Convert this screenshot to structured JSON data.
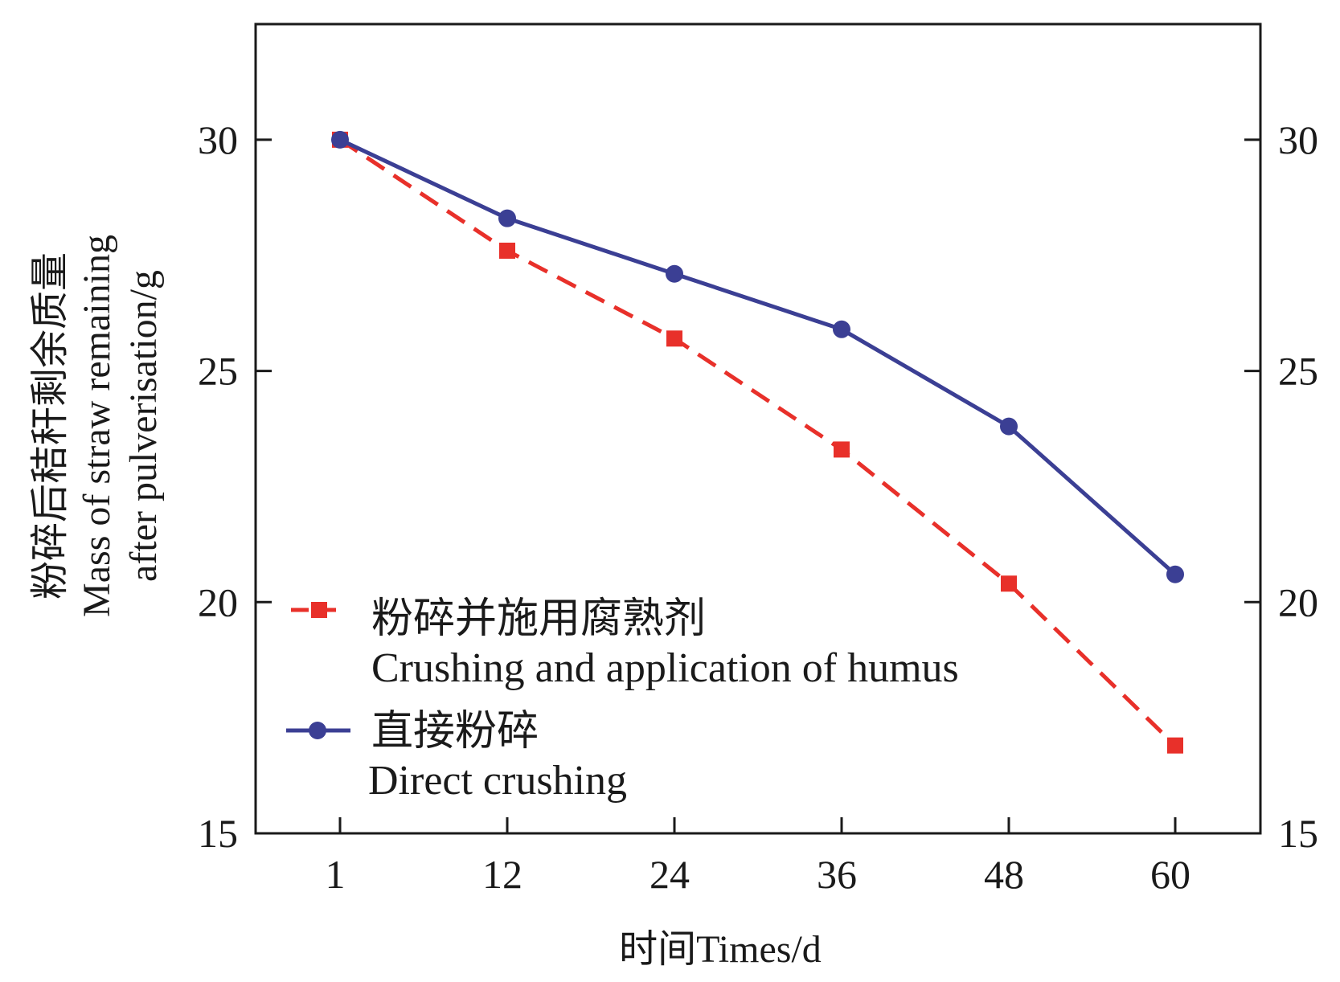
{
  "chart_data": {
    "type": "line",
    "x": [
      1,
      12,
      24,
      36,
      48,
      60
    ],
    "x_tick_labels": [
      "1",
      "12",
      "24",
      "36",
      "48",
      "60"
    ],
    "xlabel": "时间Times/d",
    "ylabel_lines": [
      "粉碎后秸秆剩余质量",
      "Mass of straw remaining",
      "after pulverisation/g"
    ],
    "ylim": [
      15,
      32.5
    ],
    "y_ticks": [
      15,
      20,
      25,
      30
    ],
    "y_tick_labels": [
      "15",
      "20",
      "25",
      "30"
    ],
    "right_axis_ticks": true,
    "grid": false,
    "legend_position": "bottom-left",
    "series": [
      {
        "name": "粉碎并施用腐熟剂",
        "name_en": "Crushing and application of humus",
        "values": [
          30.0,
          27.6,
          25.7,
          23.3,
          20.4,
          16.9
        ],
        "color": "#e8302a",
        "line_style": "dashed",
        "marker": "square"
      },
      {
        "name": "直接粉碎",
        "name_en": "Direct crushing",
        "values": [
          30.0,
          28.3,
          27.1,
          25.9,
          23.8,
          20.6
        ],
        "color": "#3b3f94",
        "line_style": "solid",
        "marker": "circle"
      }
    ]
  }
}
